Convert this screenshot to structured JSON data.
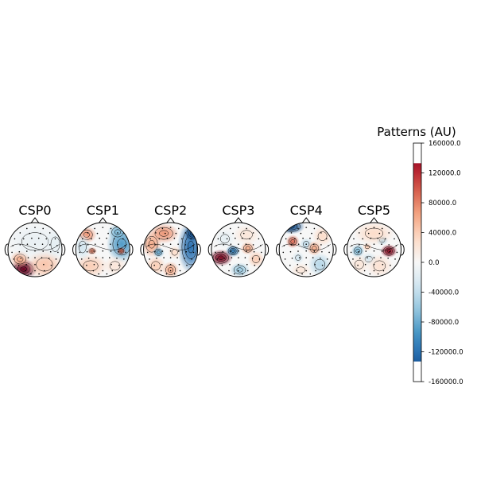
{
  "chart_data": {
    "type": "heatmap",
    "description_title": "",
    "topomaps": [
      {
        "title": "CSP0",
        "blobs": [
          {
            "cx": -0.42,
            "cy": 0.72,
            "rx": 0.42,
            "ry": 0.3,
            "value": 160000
          },
          {
            "cx": 0.35,
            "cy": 0.55,
            "rx": 0.55,
            "ry": 0.45,
            "value": 45000
          },
          {
            "cx": -0.55,
            "cy": 0.35,
            "rx": 0.3,
            "ry": 0.25,
            "value": 60000
          },
          {
            "cx": 0.0,
            "cy": -0.3,
            "rx": 0.9,
            "ry": 0.6,
            "value": -12000
          },
          {
            "cx": 0.75,
            "cy": -0.2,
            "rx": 0.3,
            "ry": 0.5,
            "value": -15000
          }
        ]
      },
      {
        "title": "CSP1",
        "blobs": [
          {
            "cx": 0.7,
            "cy": -0.2,
            "rx": 0.45,
            "ry": 0.55,
            "value": -90000
          },
          {
            "cx": 0.55,
            "cy": -0.65,
            "rx": 0.3,
            "ry": 0.25,
            "value": -70000
          },
          {
            "cx": -0.6,
            "cy": -0.55,
            "rx": 0.3,
            "ry": 0.25,
            "value": 70000
          },
          {
            "cx": -0.4,
            "cy": 0.05,
            "rx": 0.15,
            "ry": 0.12,
            "value": 80000
          },
          {
            "cx": 0.68,
            "cy": 0.05,
            "rx": 0.14,
            "ry": 0.12,
            "value": 90000
          },
          {
            "cx": -0.45,
            "cy": 0.6,
            "rx": 0.5,
            "ry": 0.35,
            "value": 40000
          },
          {
            "cx": 0.45,
            "cy": 0.6,
            "rx": 0.35,
            "ry": 0.3,
            "value": 20000
          },
          {
            "cx": -0.75,
            "cy": -0.1,
            "rx": 0.25,
            "ry": 0.4,
            "value": -30000
          }
        ]
      },
      {
        "title": "CSP2",
        "blobs": [
          {
            "cx": 0.75,
            "cy": -0.1,
            "rx": 0.4,
            "ry": 0.8,
            "value": -120000
          },
          {
            "cx": 0.8,
            "cy": -0.6,
            "rx": 0.25,
            "ry": 0.25,
            "value": -140000
          },
          {
            "cx": -0.25,
            "cy": -0.6,
            "rx": 0.45,
            "ry": 0.3,
            "value": 70000
          },
          {
            "cx": -0.7,
            "cy": -0.2,
            "rx": 0.3,
            "ry": 0.4,
            "value": 60000
          },
          {
            "cx": -0.45,
            "cy": 0.1,
            "rx": 0.18,
            "ry": 0.16,
            "value": -80000
          },
          {
            "cx": 0.15,
            "cy": 0.1,
            "rx": 0.2,
            "ry": 0.2,
            "value": 30000
          },
          {
            "cx": 0.0,
            "cy": 0.75,
            "rx": 0.25,
            "ry": 0.25,
            "value": 60000
          },
          {
            "cx": -0.55,
            "cy": 0.6,
            "rx": 0.3,
            "ry": 0.3,
            "value": 40000
          }
        ]
      },
      {
        "title": "CSP3",
        "blobs": [
          {
            "cx": -0.65,
            "cy": 0.3,
            "rx": 0.35,
            "ry": 0.25,
            "value": 150000
          },
          {
            "cx": -0.2,
            "cy": 0.05,
            "rx": 0.22,
            "ry": 0.18,
            "value": -110000
          },
          {
            "cx": 0.35,
            "cy": -0.05,
            "rx": 0.22,
            "ry": 0.2,
            "value": 60000
          },
          {
            "cx": 0.05,
            "cy": 0.75,
            "rx": 0.3,
            "ry": 0.22,
            "value": -60000
          },
          {
            "cx": 0.65,
            "cy": 0.35,
            "rx": 0.25,
            "ry": 0.25,
            "value": 40000
          },
          {
            "cx": 0.3,
            "cy": -0.55,
            "rx": 0.4,
            "ry": 0.3,
            "value": 20000
          },
          {
            "cx": -0.5,
            "cy": -0.4,
            "rx": 0.3,
            "ry": 0.3,
            "value": -15000
          }
        ]
      },
      {
        "title": "CSP4",
        "blobs": [
          {
            "cx": -0.55,
            "cy": -0.85,
            "rx": 0.4,
            "ry": 0.22,
            "value": -140000
          },
          {
            "cx": -0.5,
            "cy": -0.3,
            "rx": 0.2,
            "ry": 0.2,
            "value": 90000
          },
          {
            "cx": 0.0,
            "cy": -0.2,
            "rx": 0.2,
            "ry": 0.2,
            "value": -40000
          },
          {
            "cx": 0.3,
            "cy": -0.05,
            "rx": 0.22,
            "ry": 0.22,
            "value": 60000
          },
          {
            "cx": -0.3,
            "cy": 0.3,
            "rx": 0.18,
            "ry": 0.18,
            "value": -30000
          },
          {
            "cx": 0.5,
            "cy": 0.55,
            "rx": 0.35,
            "ry": 0.35,
            "value": -45000
          },
          {
            "cx": -0.2,
            "cy": 0.75,
            "rx": 0.3,
            "ry": 0.2,
            "value": 20000
          },
          {
            "cx": 0.6,
            "cy": -0.5,
            "rx": 0.3,
            "ry": 0.3,
            "value": 30000
          }
        ]
      },
      {
        "title": "CSP5",
        "blobs": [
          {
            "cx": 0.55,
            "cy": 0.05,
            "rx": 0.25,
            "ry": 0.2,
            "value": 140000
          },
          {
            "cx": -0.6,
            "cy": 0.05,
            "rx": 0.2,
            "ry": 0.2,
            "value": -70000
          },
          {
            "cx": 0.3,
            "cy": -0.35,
            "rx": 0.18,
            "ry": 0.15,
            "value": -50000
          },
          {
            "cx": 0.0,
            "cy": -0.6,
            "rx": 0.6,
            "ry": 0.35,
            "value": 30000
          },
          {
            "cx": -0.2,
            "cy": 0.35,
            "rx": 0.25,
            "ry": 0.2,
            "value": -30000
          },
          {
            "cx": 0.2,
            "cy": 0.6,
            "rx": 0.4,
            "ry": 0.35,
            "value": 25000
          },
          {
            "cx": -0.55,
            "cy": 0.55,
            "rx": 0.3,
            "ry": 0.3,
            "value": 20000
          },
          {
            "cx": -0.25,
            "cy": -0.1,
            "rx": 0.15,
            "ry": 0.12,
            "value": 40000
          }
        ]
      }
    ],
    "colorbar": {
      "title": "Patterns (AU)",
      "vmin": -160000,
      "vmax": 160000,
      "data_min": -133000,
      "data_max": 133000,
      "colormap": "RdBu_r",
      "ticks": [
        {
          "value": 160000,
          "label": "160000.0"
        },
        {
          "value": 120000,
          "label": "120000.0"
        },
        {
          "value": 80000,
          "label": "80000.0"
        },
        {
          "value": 40000,
          "label": "40000.0"
        },
        {
          "value": 0,
          "label": "0.0"
        },
        {
          "value": -40000,
          "label": "-40000.0"
        },
        {
          "value": -80000,
          "label": "-80000.0"
        },
        {
          "value": -120000,
          "label": "-120000.0"
        },
        {
          "value": -160000,
          "label": "-160000.0"
        }
      ]
    }
  }
}
